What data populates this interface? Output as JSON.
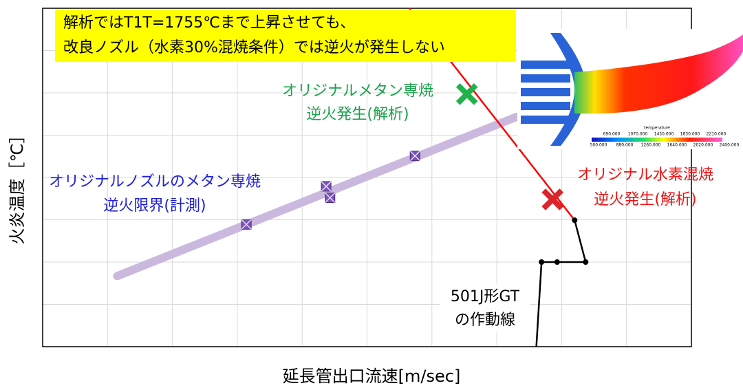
{
  "chart_data": {
    "type": "line",
    "xlabel": "延長管出口流速[m/sec]",
    "ylabel": "火炎温度［℃］",
    "xlim": [
      0,
      10
    ],
    "ylim": [
      0,
      8
    ],
    "xticks": [
      0,
      1,
      2,
      3,
      4,
      5,
      6,
      7,
      8,
      9,
      10
    ],
    "yticks": [
      0,
      1,
      2,
      3,
      4,
      5,
      6,
      7,
      8
    ],
    "grid": true,
    "series": [
      {
        "style": "band",
        "color": "#cbb8de",
        "x": [
          1.15,
          7.3
        ],
        "values": [
          1.67,
          5.43
        ]
      },
      {
        "style": "box-x",
        "color": "#7b52b9",
        "x": [
          3.14,
          4.37,
          4.43,
          5.74
        ],
        "values": [
          2.89,
          3.79,
          3.52,
          4.51
        ]
      },
      {
        "style": "line",
        "color": "#ff0000",
        "x": [
          5.65,
          8.2
        ],
        "values": [
          8,
          2.99
        ]
      },
      {
        "style": "line-dots",
        "color": "#000000",
        "x": [
          7.61,
          7.69,
          7.93,
          8.37,
          8.2
        ],
        "values": [
          0,
          2,
          2,
          2,
          2.99
        ]
      },
      {
        "style": "cross",
        "color": "#22b14c",
        "x": [
          6.54
        ],
        "values": [
          5.97
        ]
      },
      {
        "style": "cross",
        "color": "#d9262c",
        "x": [
          7.86
        ],
        "values": [
          3.48
        ]
      }
    ],
    "annotations": [
      {
        "lines": [
          "解析ではT1T=1755℃まで上昇させても、",
          "改良ノズル（水素30%混焼条件）では逆火が発生しない"
        ],
        "color": "#000000",
        "background": "#ffff00"
      },
      {
        "lines": [
          "オリジナルメタン専焼",
          "逆火発生(解析)"
        ],
        "color": "#1aa34a"
      },
      {
        "lines": [
          "オリジナルノズルのメタン専焼",
          "逆火限界(計測)"
        ],
        "color": "#1f1fd6"
      },
      {
        "lines": [
          "オリジナル水素混焼",
          "逆火発生(解析)"
        ],
        "color": "#ee1111"
      },
      {
        "lines": [
          "501J形GT",
          "の作動線"
        ],
        "color": "#000000",
        "background": "#ffffff"
      }
    ],
    "inset": {
      "colorbar_label": "temperature",
      "ticks_top": [
        "690.000",
        "1070.000",
        "1450.000",
        "1830.000",
        "2210.000"
      ],
      "ticks_bottom": [
        "500.000",
        "880.000",
        "1260.000",
        "1640.000",
        "2020.000",
        "2400.000"
      ]
    }
  }
}
